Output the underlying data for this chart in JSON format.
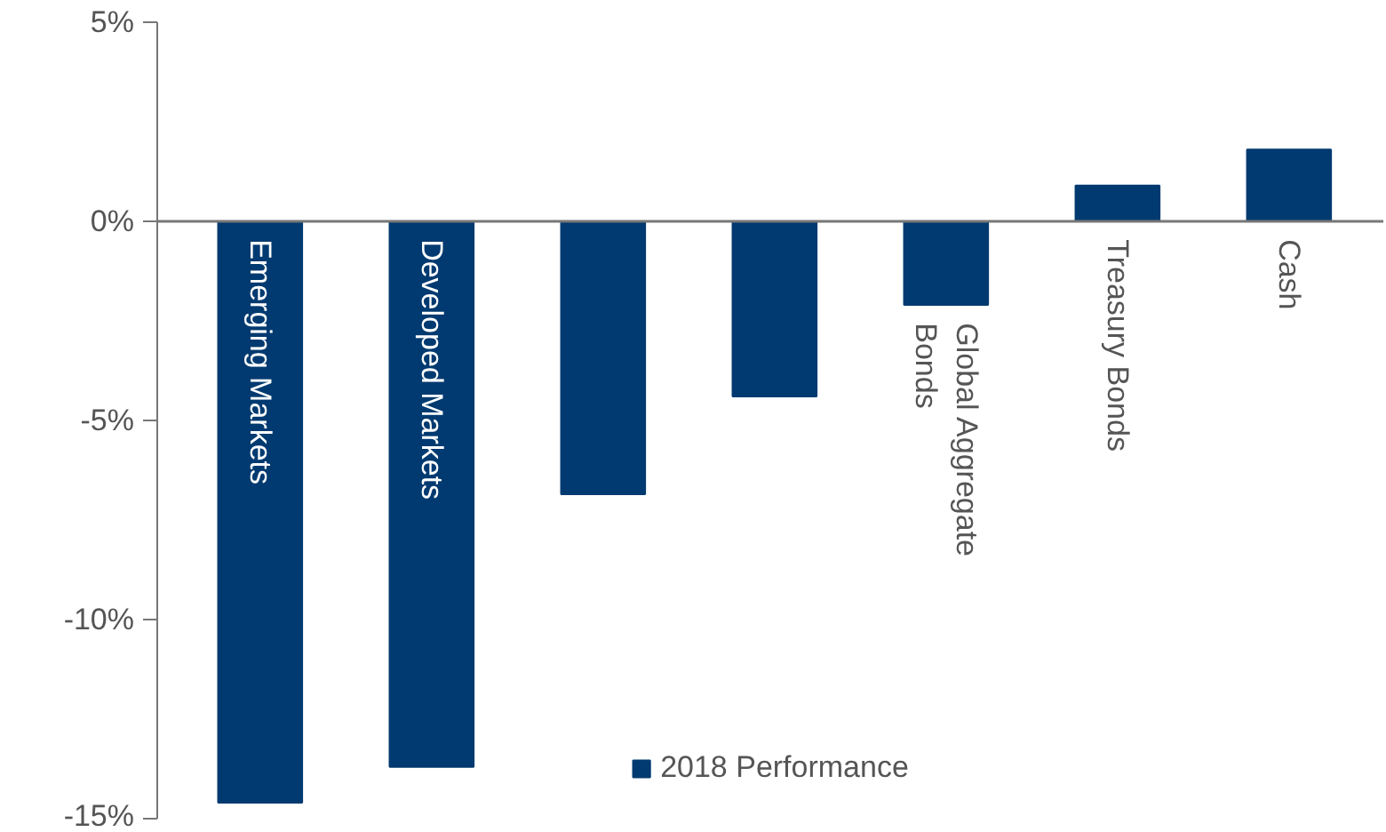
{
  "chart_data": {
    "type": "bar",
    "categories": [
      "Emerging Markets",
      "Developed Markets",
      null,
      null,
      "Global Aggregate Bonds",
      "Treasury Bonds",
      "Cash"
    ],
    "series": [
      {
        "name": "2018 Performance",
        "color": "#003a70",
        "values": [
          -14.6,
          -13.7,
          -6.85,
          -4.4,
          -2.1,
          0.9,
          1.8
        ]
      }
    ],
    "ylim": [
      -15,
      5
    ],
    "yticks": [
      {
        "value": 5,
        "label": "5%"
      },
      {
        "value": 0,
        "label": "0%"
      },
      {
        "value": -5,
        "label": "-5%"
      },
      {
        "value": -10,
        "label": "-10%"
      },
      {
        "value": -15,
        "label": "-15%"
      }
    ],
    "tick_labels": "y",
    "grid": false,
    "legend": "bottom"
  }
}
